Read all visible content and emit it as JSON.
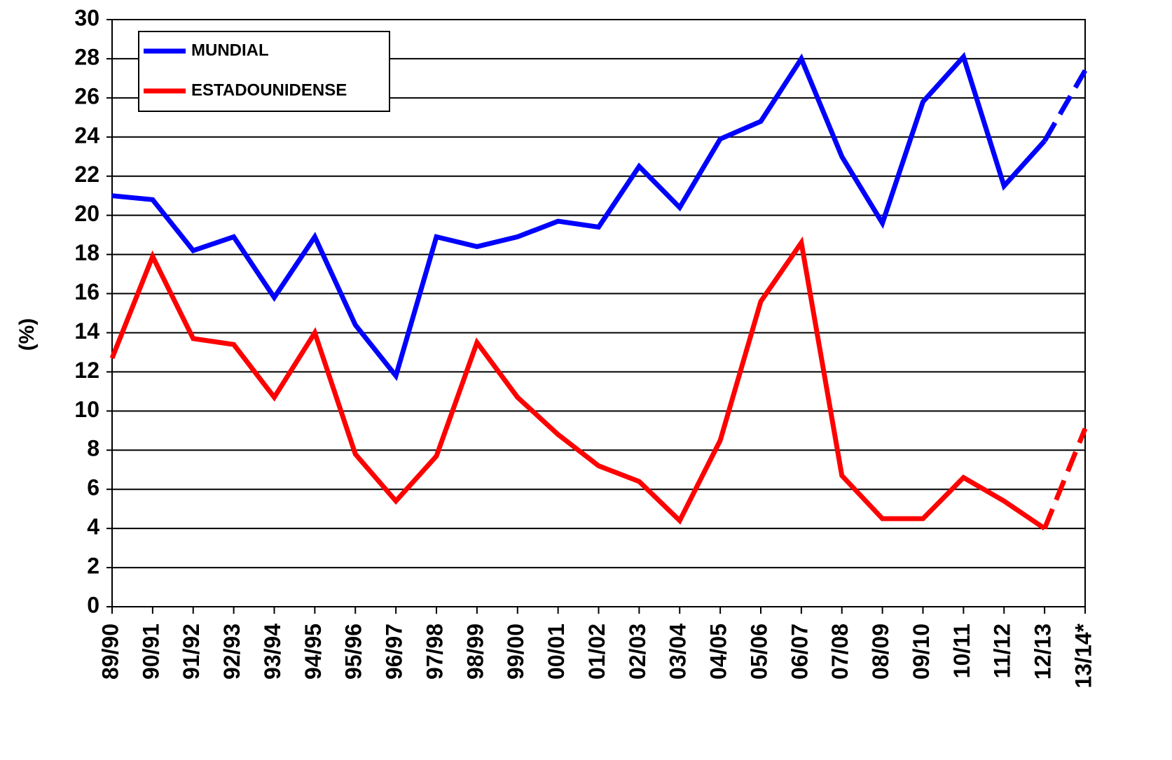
{
  "chart_data": {
    "type": "line",
    "y_label": "(%)",
    "categories": [
      "89/90",
      "90/91",
      "91/92",
      "92/93",
      "93/94",
      "94/95",
      "95/96",
      "96/97",
      "97/98",
      "98/99",
      "99/00",
      "00/01",
      "01/02",
      "02/03",
      "03/04",
      "04/05",
      "05/06",
      "06/07",
      "07/08",
      "08/09",
      "09/10",
      "10/11",
      "11/12",
      "12/13",
      "13/14*"
    ],
    "series": [
      {
        "name": "MUNDIAL",
        "color": "#0000ff",
        "values": [
          21.0,
          20.8,
          18.2,
          18.9,
          15.8,
          18.9,
          14.4,
          11.8,
          18.9,
          18.4,
          18.9,
          19.7,
          19.4,
          22.5,
          20.4,
          23.9,
          24.8,
          28.0,
          23.0,
          19.6,
          25.8,
          28.1,
          21.5,
          23.8,
          27.4
        ]
      },
      {
        "name": "ESTADOUNIDENSE",
        "color": "#ff0000",
        "values": [
          12.7,
          17.9,
          13.7,
          13.4,
          10.7,
          14.0,
          7.8,
          5.4,
          7.7,
          13.5,
          10.7,
          8.8,
          7.2,
          6.4,
          4.4,
          8.5,
          15.6,
          18.6,
          6.7,
          4.5,
          4.5,
          6.6,
          5.4,
          4.0,
          9.1
        ]
      }
    ],
    "dash_last_segment": true,
    "ylim": [
      0,
      30
    ],
    "yticks": [
      0,
      2,
      4,
      6,
      8,
      10,
      12,
      14,
      16,
      18,
      20,
      22,
      24,
      26,
      28,
      30
    ],
    "grid": true,
    "legend": "upper left"
  }
}
